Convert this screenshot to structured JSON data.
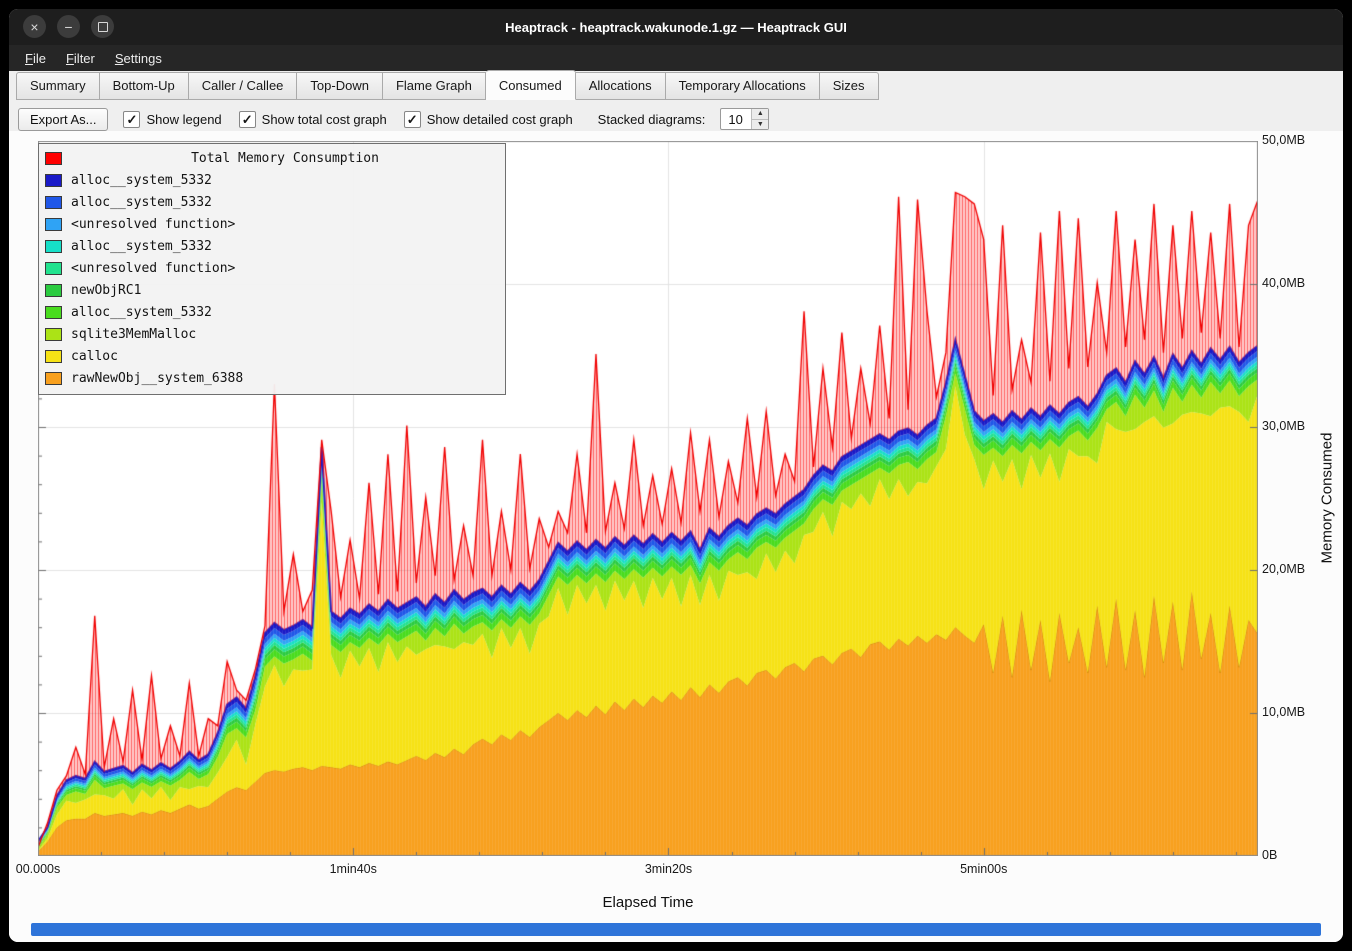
{
  "window": {
    "title": "Heaptrack - heaptrack.wakunode.1.gz — Heaptrack GUI"
  },
  "menu": {
    "items": [
      {
        "pre": "",
        "accel": "F",
        "post": "ile"
      },
      {
        "pre": "",
        "accel": "F",
        "post": "ilter"
      },
      {
        "pre": "",
        "accel": "S",
        "post": "ettings"
      }
    ]
  },
  "tabs": {
    "items": [
      "Summary",
      "Bottom-Up",
      "Caller / Callee",
      "Top-Down",
      "Flame Graph",
      "Consumed",
      "Allocations",
      "Temporary Allocations",
      "Sizes"
    ],
    "active_index": 5
  },
  "toolbar": {
    "export_label": "Export As...",
    "checkboxes": [
      {
        "label": "Show legend",
        "checked": true
      },
      {
        "label": "Show total cost graph",
        "checked": true
      },
      {
        "label": "Show detailed cost graph",
        "checked": true
      }
    ],
    "stacked_label": "Stacked diagrams:",
    "stacked_value": "10"
  },
  "legend": {
    "title": "Total Memory Consumption",
    "title_color": "#FF0000",
    "items": [
      {
        "label": "alloc__system_5332",
        "color": "#1A1AC8"
      },
      {
        "label": "alloc__system_5332",
        "color": "#2057E8"
      },
      {
        "label": "<unresolved function>",
        "color": "#2FA3F5"
      },
      {
        "label": "alloc__system_5332",
        "color": "#16DFC8"
      },
      {
        "label": "<unresolved function>",
        "color": "#22E28E"
      },
      {
        "label": "newObjRC1",
        "color": "#2BCB40"
      },
      {
        "label": "alloc__system_5332",
        "color": "#49DC1E"
      },
      {
        "label": "sqlite3MemMalloc",
        "color": "#ABE316"
      },
      {
        "label": "calloc",
        "color": "#F6E216"
      },
      {
        "label": "rawNewObj__system_6388",
        "color": "#F8A01E"
      }
    ]
  },
  "axes": {
    "y_ticks": [
      "50,0MB",
      "40,0MB",
      "30,0MB",
      "20,0MB",
      "10,0MB",
      "0B"
    ],
    "y_tick_values": [
      50,
      40,
      30,
      20,
      10,
      0
    ],
    "y_label": "Memory Consumed",
    "x_ticks": [
      "00.000s",
      "1min40s",
      "3min20s",
      "5min00s"
    ],
    "x_tick_times": [
      0,
      100,
      200,
      300
    ],
    "x_label": "Elapsed Time"
  },
  "colors": {
    "timeline_bar": "#2E74D9",
    "consumed_line": "#1A1AC8",
    "total_line": "#F00000",
    "grid": "#E3E3E3",
    "tick": "#6E6E6E",
    "plot_border": "#8C8C8C"
  },
  "misc": {
    "check_glyph": "✓",
    "spin_up": "▲",
    "spin_down": "▼",
    "close_glyph": "×",
    "min_glyph": "−"
  },
  "chart_data": {
    "type": "area",
    "stacked": true,
    "title": "Total Memory Consumption",
    "xlabel": "Elapsed Time",
    "ylabel": "Memory Consumed",
    "y_unit": "MB",
    "ylim": [
      0,
      50
    ],
    "x_unit": "s",
    "x_start": 0,
    "x_step": 3,
    "x_max": 387,
    "total_consumed": [
      0.5,
      2.0,
      4.2,
      5.3,
      5.6,
      5.4,
      6.6,
      5.9,
      6.1,
      6.3,
      5.8,
      6.4,
      6.0,
      6.5,
      6.1,
      6.6,
      7.3,
      6.7,
      7.1,
      8.6,
      10.6,
      11.1,
      10.3,
      12.6,
      15.6,
      16.3,
      15.8,
      16.1,
      16.5,
      16.0,
      28.6,
      17.1,
      16.6,
      17.3,
      16.9,
      17.6,
      17.1,
      17.9,
      17.3,
      17.7,
      18.1,
      17.4,
      18.3,
      17.7,
      18.6,
      17.9,
      18.4,
      18.7,
      18.1,
      18.9,
      18.3,
      19.1,
      18.5,
      19.3,
      20.6,
      21.9,
      21.3,
      22.0,
      21.4,
      22.1,
      21.5,
      22.3,
      21.7,
      22.4,
      21.8,
      22.5,
      21.9,
      22.6,
      22.0,
      22.7,
      21.4,
      22.9,
      22.3,
      23.1,
      23.6,
      23.1,
      23.9,
      24.3,
      23.9,
      24.6,
      25.1,
      25.6,
      26.6,
      27.3,
      26.9,
      27.9,
      28.3,
      28.7,
      29.1,
      29.5,
      29.1,
      29.7,
      29.9,
      29.4,
      30.1,
      30.6,
      33.1,
      36.1,
      33.6,
      31.1,
      30.4,
      30.9,
      30.3,
      31.1,
      30.5,
      31.3,
      30.7,
      31.5,
      30.9,
      31.7,
      32.1,
      31.4,
      32.3,
      33.6,
      34.1,
      33.1,
      34.6,
      33.7,
      34.9,
      33.4,
      35.1,
      34.1,
      35.3,
      34.4,
      35.5,
      34.7,
      35.6,
      34.5,
      35.2,
      35.7
    ],
    "peak_total": [
      0.6,
      2.3,
      4.6,
      5.6,
      7.6,
      5.7,
      16.8,
      6.2,
      9.6,
      6.6,
      11.6,
      6.7,
      12.6,
      6.8,
      9.1,
      7.0,
      12.1,
      7.0,
      9.6,
      9.1,
      13.6,
      11.6,
      10.9,
      13.1,
      16.1,
      33.0,
      17.1,
      21.1,
      17.1,
      18.6,
      29.1,
      24.1,
      18.1,
      22.1,
      18.0,
      26.1,
      18.3,
      28.1,
      18.5,
      30.1,
      19.1,
      25.1,
      19.6,
      28.6,
      19.3,
      23.1,
      19.6,
      29.1,
      19.6,
      24.1,
      20.0,
      28.1,
      20.1,
      23.6,
      21.6,
      24.1,
      22.6,
      28.1,
      22.6,
      35.1,
      22.7,
      26.1,
      22.9,
      29.1,
      23.1,
      26.6,
      23.2,
      27.1,
      23.3,
      29.6,
      24.1,
      29.1,
      23.7,
      27.6,
      24.7,
      30.6,
      25.1,
      31.1,
      25.2,
      28.1,
      26.2,
      38.1,
      27.2,
      34.1,
      28.6,
      36.6,
      29.2,
      34.1,
      30.2,
      37.1,
      30.6,
      46.1,
      31.2,
      45.9,
      38.1,
      32.1,
      35.2,
      46.4,
      46.1,
      45.6,
      43.1,
      32.2,
      44.1,
      32.6,
      36.1,
      33.1,
      43.6,
      33.2,
      45.1,
      34.1,
      44.6,
      34.2,
      40.1,
      35.2,
      45.1,
      35.6,
      43.1,
      36.1,
      45.6,
      35.2,
      44.1,
      36.2,
      45.1,
      36.6,
      43.6,
      36.2,
      45.6,
      35.6,
      44.1,
      45.9
    ],
    "bands_bottom_to_top": [
      {
        "name": "rawNewObj__system_6388",
        "color": "#F8A01E",
        "values": [
          0.3,
          1.0,
          2.0,
          2.5,
          2.6,
          2.6,
          3.0,
          2.8,
          2.9,
          3.0,
          2.8,
          3.1,
          2.9,
          3.2,
          3.0,
          3.3,
          3.6,
          3.3,
          3.5,
          4.0,
          4.5,
          4.8,
          4.6,
          5.2,
          5.8,
          6.0,
          5.9,
          6.1,
          6.2,
          6.0,
          6.3,
          6.2,
          6.1,
          6.4,
          6.2,
          6.5,
          6.3,
          6.6,
          6.4,
          6.7,
          7.0,
          6.7,
          7.2,
          6.9,
          7.5,
          7.1,
          7.8,
          8.2,
          7.8,
          8.5,
          8.1,
          8.8,
          8.3,
          9.0,
          9.5,
          10.0,
          9.5,
          10.2,
          9.7,
          10.5,
          9.9,
          10.8,
          10.2,
          11.0,
          10.4,
          11.2,
          10.7,
          11.5,
          10.9,
          11.8,
          11.1,
          12.0,
          11.4,
          12.2,
          12.5,
          11.9,
          12.8,
          13.0,
          12.4,
          13.2,
          13.5,
          12.9,
          13.8,
          14.0,
          13.4,
          14.2,
          14.5,
          13.9,
          14.8,
          15.0,
          14.4,
          15.2,
          14.7,
          15.4,
          14.9,
          15.5,
          15.1,
          16.0,
          15.4,
          14.9,
          16.2,
          12.8,
          16.8,
          12.5,
          17.2,
          13.0,
          16.5,
          12.2,
          17.0,
          13.5,
          16.0,
          12.8,
          17.5,
          13.2,
          18.0,
          13.0,
          17.2,
          12.5,
          18.2,
          13.5,
          17.8,
          13.0,
          18.5,
          13.8,
          17.0,
          12.8,
          17.5,
          13.2,
          16.5,
          15.5
        ]
      },
      {
        "name": "calloc",
        "color": "#F6E216",
        "fill_remaining": true
      },
      {
        "name": "sqlite3MemMalloc",
        "color": "#ABE316",
        "values": [
          0.2,
          0.3,
          0.5,
          0.4,
          0.8,
          0.4,
          1.0,
          0.5,
          0.9,
          0.4,
          1.1,
          0.5,
          0.8,
          0.4,
          1.0,
          0.5,
          1.2,
          0.5,
          0.9,
          1.1,
          1.6,
          0.8,
          1.9,
          1.0,
          1.4,
          0.6,
          1.6,
          0.7,
          1.2,
          0.6,
          1.5,
          0.7,
          1.8,
          0.6,
          1.3,
          0.7,
          1.9,
          0.6,
          1.4,
          0.7,
          1.7,
          0.6,
          1.2,
          0.7,
          1.8,
          0.6,
          1.3,
          0.8,
          1.9,
          0.6,
          1.4,
          0.8,
          2.0,
          0.7,
          1.5,
          0.8,
          2.1,
          0.7,
          1.4,
          0.8,
          2.0,
          0.7,
          1.5,
          0.8,
          2.1,
          0.7,
          1.6,
          0.8,
          2.2,
          0.7,
          1.5,
          0.9,
          2.1,
          0.8,
          1.6,
          0.9,
          2.2,
          0.8,
          1.7,
          0.9,
          2.3,
          0.8,
          1.6,
          0.9,
          2.2,
          0.8,
          1.7,
          1.0,
          2.3,
          0.8,
          1.8,
          1.0,
          2.4,
          0.9,
          1.7,
          1.0,
          2.3,
          0.9,
          1.8,
          1.0,
          2.4,
          0.9,
          1.8,
          1.0,
          2.5,
          0.9,
          1.9,
          1.0,
          2.4,
          0.9,
          1.8,
          1.1,
          2.5,
          0.9,
          1.9,
          1.1,
          2.4,
          1.0,
          1.8,
          1.1,
          2.5,
          0.9,
          1.9,
          1.1,
          2.4,
          1.0,
          1.8,
          1.1,
          2.5,
          1.0
        ]
      },
      {
        "name": "alloc__system_5332",
        "color": "#49DC1E",
        "thickness": 0.5
      },
      {
        "name": "newObjRC1",
        "color": "#2BCB40",
        "thickness": 0.3
      },
      {
        "name": "<unresolved function>",
        "color": "#22E28E",
        "thickness": 0.25
      },
      {
        "name": "alloc__system_5332",
        "color": "#16DFC8",
        "thickness": 0.25
      },
      {
        "name": "<unresolved function>",
        "color": "#2FA3F5",
        "thickness": 0.3
      },
      {
        "name": "alloc__system_5332",
        "color": "#2057E8",
        "thickness": 0.4
      },
      {
        "name": "alloc__system_5332",
        "color": "#1A1AC8",
        "thickness": 0.35
      }
    ]
  }
}
